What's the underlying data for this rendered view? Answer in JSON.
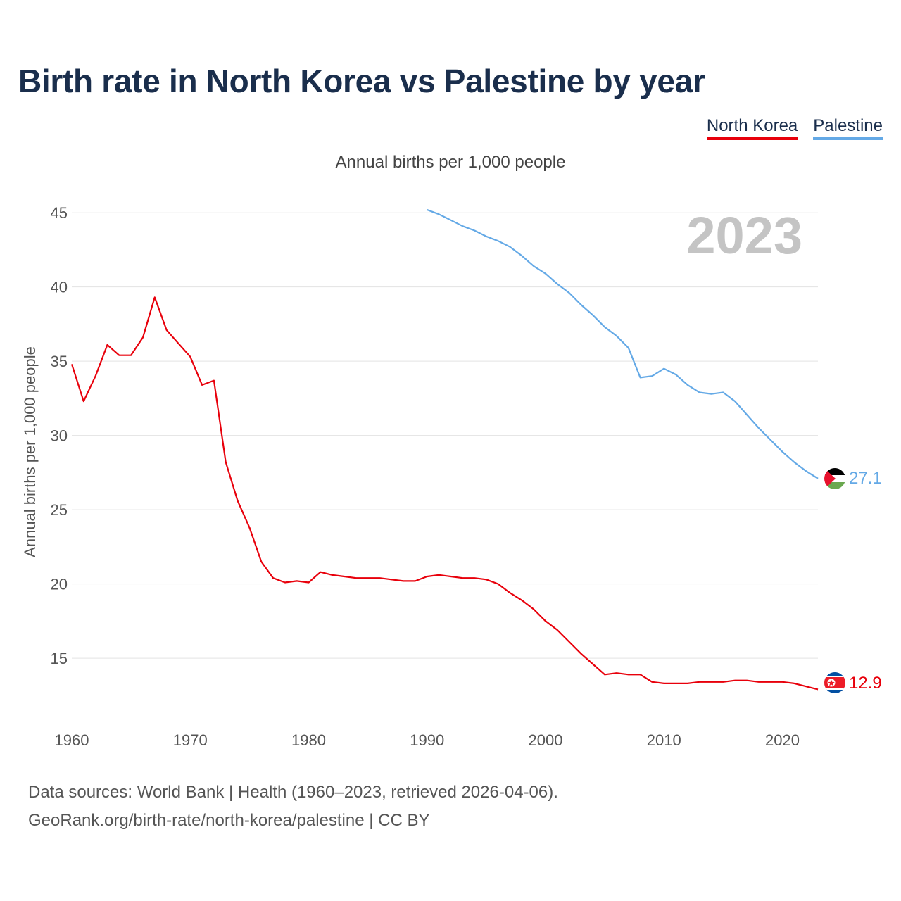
{
  "page": {
    "title": "Birth rate in North Korea vs Palestine by year",
    "subtitle": "Annual births per 1,000 people",
    "year_badge": "2023",
    "source_line1": "Data sources: World Bank | Health (1960–2023, retrieved 2026-04-06).",
    "source_line2": "GeoRank.org/birth-rate/north-korea/palestine | CC BY"
  },
  "legend": [
    {
      "label": "North Korea",
      "color": "#e8000b"
    },
    {
      "label": "Palestine",
      "color": "#64a9e6"
    }
  ],
  "chart_data": {
    "type": "line",
    "title": "Birth rate in North Korea vs Palestine by year",
    "xlabel": "",
    "ylabel": "Annual births per 1,000 people",
    "xlim": [
      1960,
      2023
    ],
    "ylim": [
      10.5,
      47
    ],
    "x_ticks": [
      1960,
      1970,
      1980,
      1990,
      2000,
      2010,
      2020
    ],
    "y_ticks": [
      15,
      20,
      25,
      30,
      35,
      40,
      45
    ],
    "grid": true,
    "series": [
      {
        "name": "North Korea",
        "color": "#e8000b",
        "x": [
          1960,
          1961,
          1962,
          1963,
          1964,
          1965,
          1966,
          1967,
          1968,
          1969,
          1970,
          1971,
          1972,
          1973,
          1974,
          1975,
          1976,
          1977,
          1978,
          1979,
          1980,
          1981,
          1982,
          1983,
          1984,
          1985,
          1986,
          1987,
          1988,
          1989,
          1990,
          1991,
          1992,
          1993,
          1994,
          1995,
          1996,
          1997,
          1998,
          1999,
          2000,
          2001,
          2002,
          2003,
          2004,
          2005,
          2006,
          2007,
          2008,
          2009,
          2010,
          2011,
          2012,
          2013,
          2014,
          2015,
          2016,
          2017,
          2018,
          2019,
          2020,
          2021,
          2022,
          2023
        ],
        "values": [
          34.8,
          32.3,
          34.0,
          36.1,
          35.4,
          35.4,
          36.6,
          39.3,
          37.1,
          36.2,
          35.3,
          33.4,
          33.7,
          28.2,
          25.6,
          23.8,
          21.5,
          20.4,
          20.1,
          20.2,
          20.1,
          20.8,
          20.6,
          20.5,
          20.4,
          20.4,
          20.4,
          20.3,
          20.2,
          20.2,
          20.5,
          20.6,
          20.5,
          20.4,
          20.4,
          20.3,
          20.0,
          19.4,
          18.9,
          18.3,
          17.5,
          16.9,
          16.1,
          15.3,
          14.6,
          13.9,
          14.0,
          13.9,
          13.9,
          13.4,
          13.3,
          13.3,
          13.3,
          13.4,
          13.4,
          13.4,
          13.5,
          13.5,
          13.4,
          13.4,
          13.4,
          13.3,
          13.1,
          12.9
        ]
      },
      {
        "name": "Palestine",
        "color": "#64a9e6",
        "x": [
          1990,
          1991,
          1992,
          1993,
          1994,
          1995,
          1996,
          1997,
          1998,
          1999,
          2000,
          2001,
          2002,
          2003,
          2004,
          2005,
          2006,
          2007,
          2008,
          2009,
          2010,
          2011,
          2012,
          2013,
          2014,
          2015,
          2016,
          2017,
          2018,
          2019,
          2020,
          2021,
          2022,
          2023
        ],
        "values": [
          45.2,
          44.9,
          44.5,
          44.1,
          43.8,
          43.4,
          43.1,
          42.7,
          42.1,
          41.4,
          40.9,
          40.2,
          39.6,
          38.8,
          38.1,
          37.3,
          36.7,
          35.9,
          33.9,
          34.0,
          34.5,
          34.1,
          33.4,
          32.9,
          32.8,
          32.9,
          32.3,
          31.4,
          30.5,
          29.7,
          28.9,
          28.2,
          27.6,
          27.1
        ]
      }
    ],
    "end_labels": [
      {
        "series": "North Korea",
        "text": "12.9"
      },
      {
        "series": "Palestine",
        "text": "27.1"
      }
    ]
  }
}
